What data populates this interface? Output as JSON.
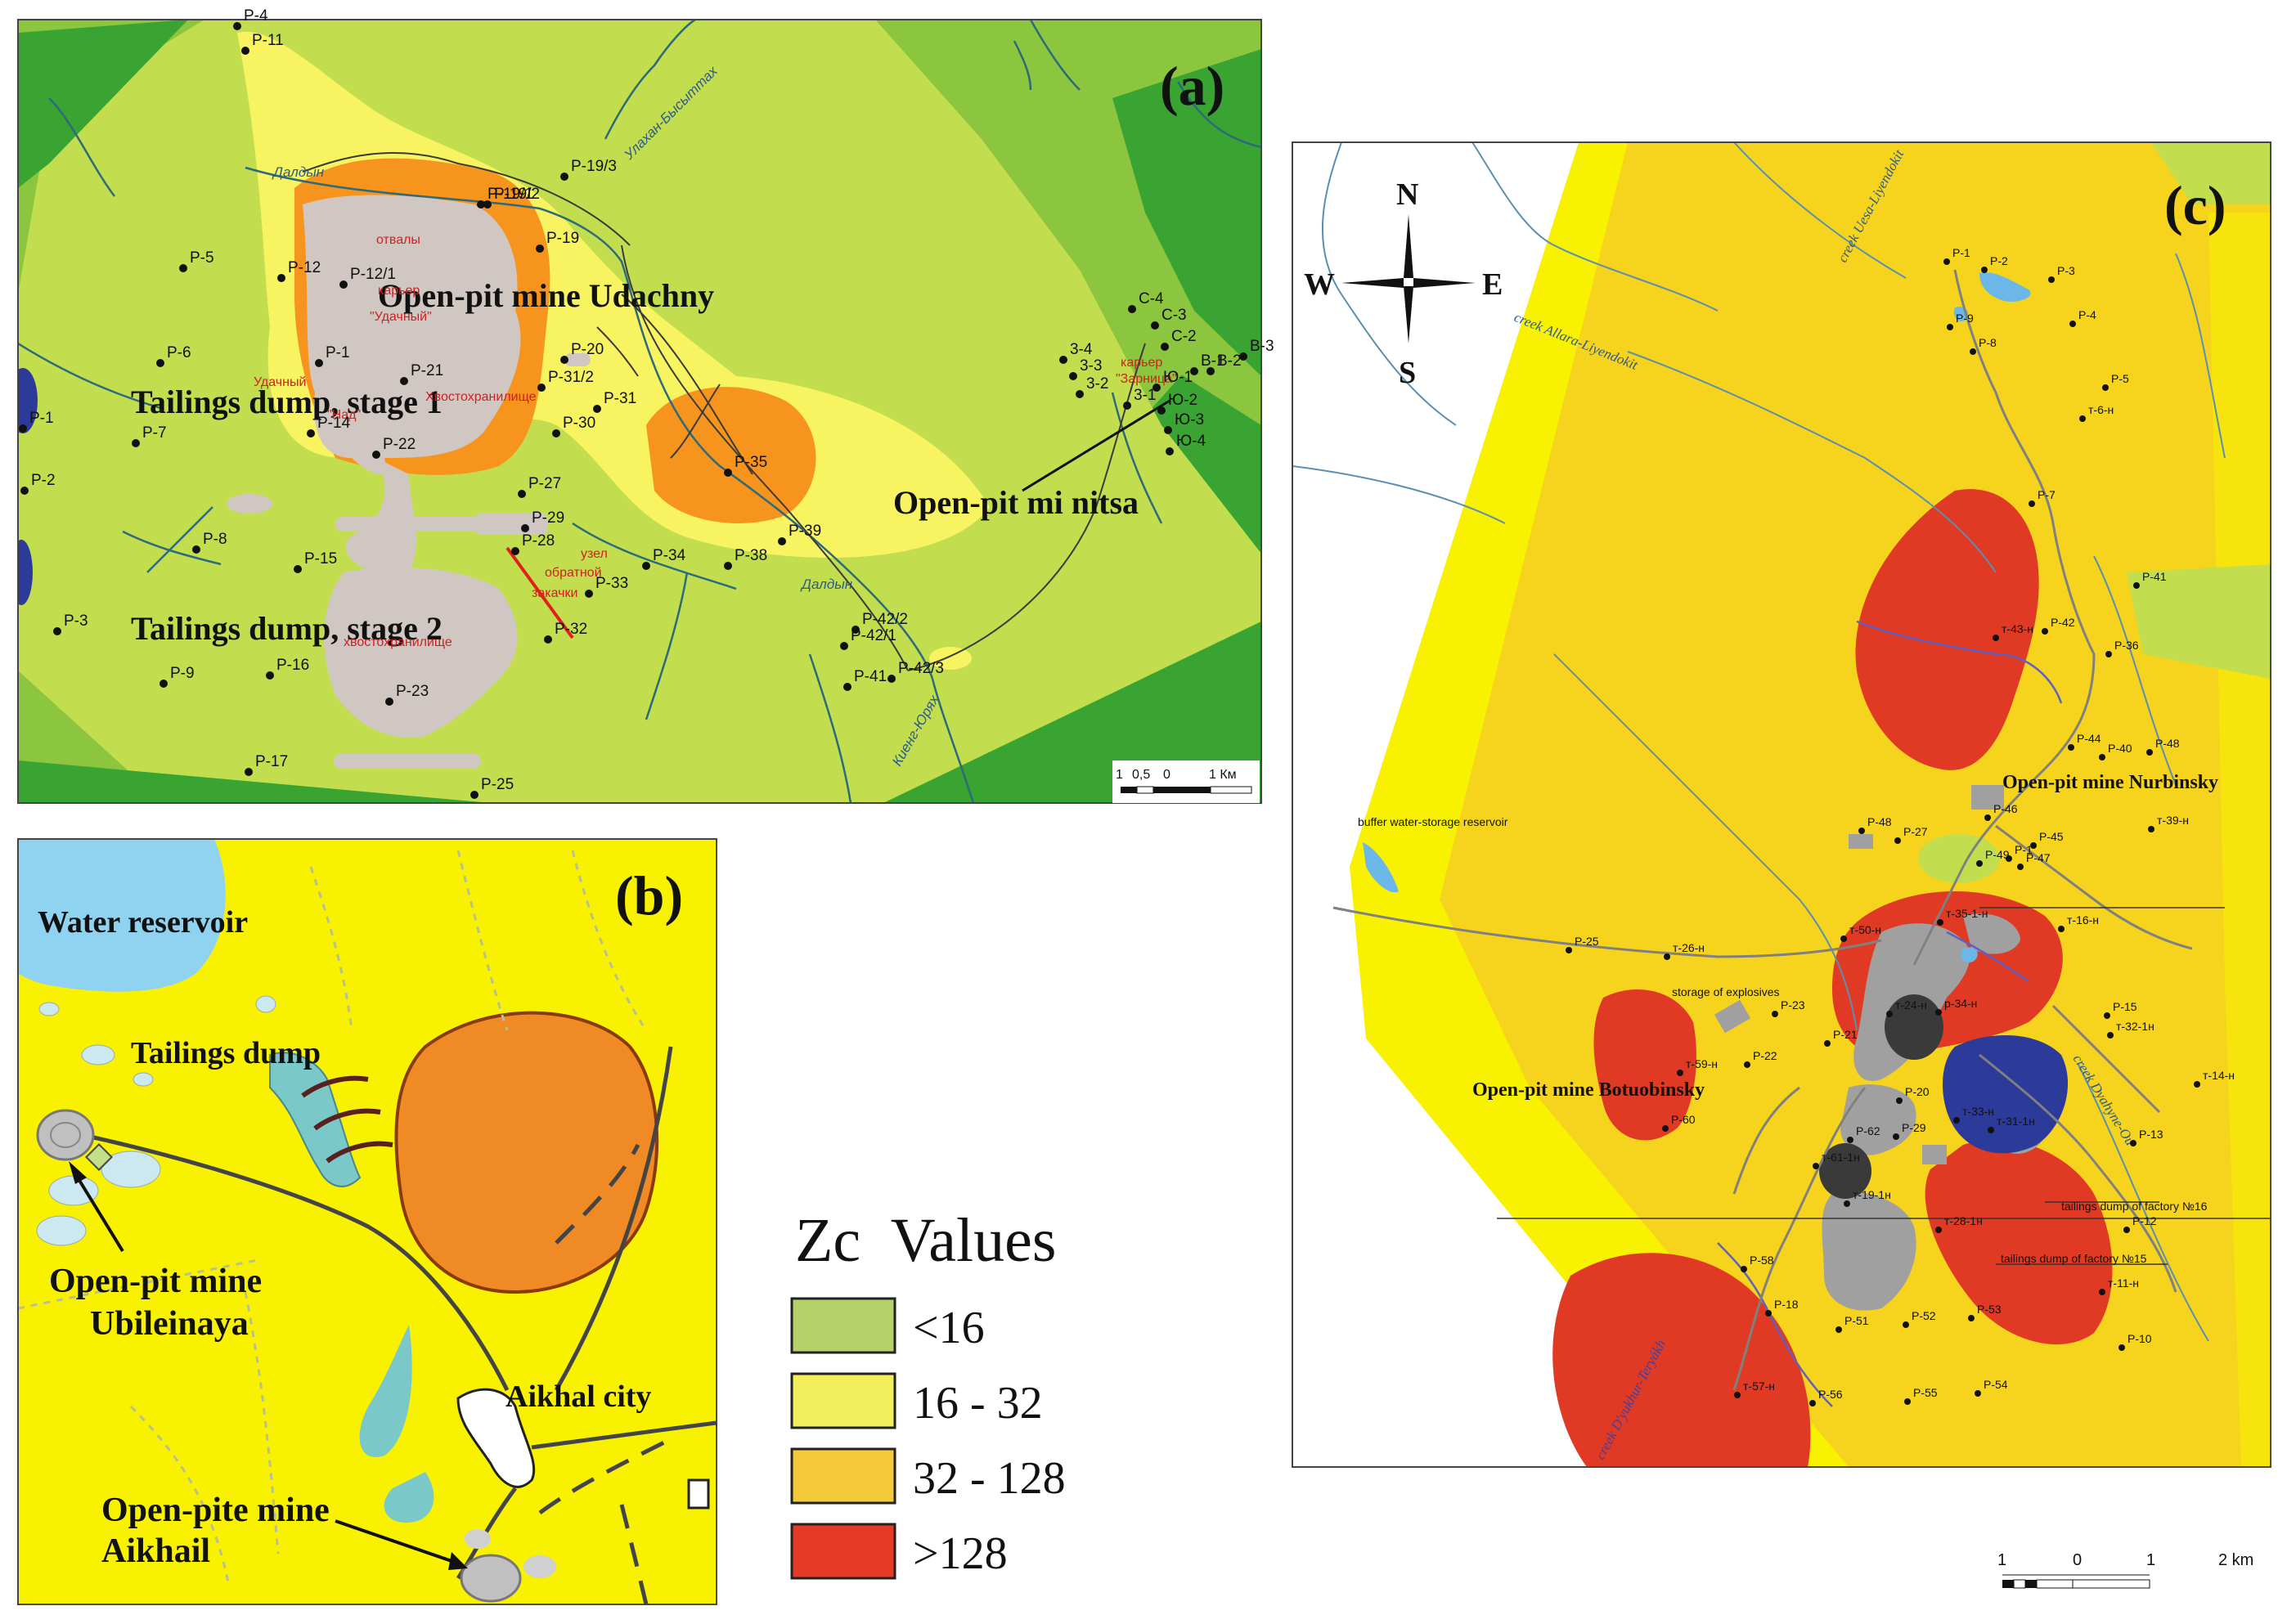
{
  "panels": {
    "a": {
      "letter": "(a)",
      "labels": {
        "udachny": "Open-pit mine Udachny",
        "zarnitsa": "Open-pit mi   nitsa",
        "dump1": "Tailings dump, stage 1",
        "dump2": "Tailings dump, stage 2"
      },
      "cyrillic": [
        "отвалы",
        "карьер",
        "\"Удачный\"",
        "Удачный",
        "Хвостохранилище",
        "\"Над\"",
        "узел",
        "обратной",
        "закачки",
        "хвостохранилище",
        "карьер",
        "\"Зарница\""
      ],
      "rivers": [
        "Далдын",
        "Улахан-Бысыттах",
        "Далдын",
        "Киенг-Юрях"
      ],
      "points": [
        "P-4",
        "P-11",
        "P-19/1",
        "P-19/2",
        "P-19/3",
        "P-19",
        "P-12",
        "P-12/1",
        "P-5",
        "P-6",
        "P-1",
        "P-21",
        "P-20",
        "P-31/2",
        "P-31",
        "P-30",
        "P-14",
        "P-7",
        "P-1",
        "P-2",
        "P-22",
        "P-35",
        "P-27",
        "P-29",
        "P-28",
        "P-8",
        "P-15",
        "P-34",
        "P-38",
        "P-39",
        "P-33",
        "P-3",
        "P-32",
        "P-42/2",
        "P-42/1",
        "P-41",
        "P-42/3",
        "P-16",
        "P-9",
        "P-23",
        "P-17",
        "P-25",
        "3-4",
        "3-3",
        "3-2",
        "3-1",
        "С-4",
        "С-3",
        "С-2",
        "В-1",
        "В-2",
        "В-3",
        "Ю-1",
        "Ю-2",
        "Ю-3",
        "Ю-4"
      ],
      "scale": [
        "1",
        "0,5",
        "0",
        "1 Км"
      ]
    },
    "b": {
      "letter": "(b)",
      "labels": {
        "reservoir": "Water reservoir",
        "dump": "Tailings dump",
        "ubileinaya1": "Open-pit mine",
        "ubileinaya2": "Ubileinaya",
        "aikhal": "Aikhal city",
        "aikhail1": "Open-pite mine",
        "aikhail2": "Aikhail"
      }
    },
    "c": {
      "letter": "(c)",
      "compass": [
        "N",
        "W",
        "E",
        "S"
      ],
      "labels": {
        "nurbinsky": "Open-pit mine Nurbinsky",
        "botuobinsky": "Open-pit mine Botuobinsky",
        "buffer": "buffer water-storage reservoir",
        "explosives": "storage of explosives",
        "dump16": "tailings dump of factory №16",
        "dump15": "tailings dump of factory №15"
      },
      "creeks": [
        "creek Uesa-Liyendokit",
        "creek Allara-Liyendokit",
        "creek Dyahyne-Ou",
        "creek D'yukhur-Teryákh"
      ],
      "points": [
        "P-1",
        "P-2",
        "P-3",
        "P-9",
        "P-8",
        "P-4",
        "P-5",
        "т-6-н",
        "P-7",
        "P-41",
        "т-43-н",
        "P-42",
        "P-36",
        "P-44",
        "P-40",
        "P-48",
        "т-39-н",
        "P-48",
        "P-27",
        "P-46",
        "P-1",
        "P-45",
        "P-49",
        "P-47",
        "P-25",
        "т-26-н",
        "т-50-н",
        "т-35-1-н",
        "т-16-н",
        "P-23",
        "т-24-н",
        "р-34-н",
        "P-15",
        "т-32-1н",
        "P-21",
        "P-22",
        "т-59-н",
        "P-20",
        "т-14-н",
        "т-31-1н",
        "P-60",
        "P-62",
        "P-29",
        "т-33-н",
        "P-13",
        "т-61-1н",
        "т-19-1н",
        "P-12",
        "т-28-1н",
        "P-58",
        "т-11-н",
        "P-18",
        "P-51",
        "P-52",
        "P-53",
        "P-10",
        "т-57-н",
        "P-56",
        "P-55",
        "P-54"
      ],
      "scale": [
        "1",
        "0",
        "1",
        "2 km"
      ]
    }
  },
  "legend": {
    "title": "Zc  Values",
    "items": [
      {
        "label": "<16",
        "color": "#b5d26a"
      },
      {
        "label": "16 - 32",
        "color": "#f2ee5c"
      },
      {
        "label": "32 - 128",
        "color": "#f5c93c"
      },
      {
        "label": ">128",
        "color": "#e63a26"
      }
    ]
  },
  "colors": {
    "darkGreen": "#3aa433",
    "midGreen": "#8cc63e",
    "lightGreen": "#c2de4e",
    "yellowA": "#f7f361",
    "orange": "#f7941d",
    "tailings": "#d0c7c2",
    "yellowB": "#f8f200",
    "yellowC": "#f6d31d",
    "redC": "#e13a24",
    "gray": "#a0a0a0",
    "water": "#8fd3f0",
    "navy": "#2c3a9a"
  }
}
